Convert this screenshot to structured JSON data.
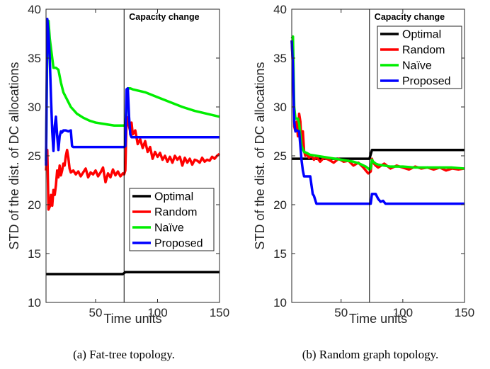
{
  "chart_data": [
    {
      "type": "line",
      "caption": "(a) Fat-tree topology.",
      "xlabel": "Time units",
      "ylabel": "STD of the dist. of DC allocations",
      "xlim": [
        10,
        150
      ],
      "ylim": [
        10,
        40
      ],
      "xticks": [
        50,
        100,
        150
      ],
      "yticks": [
        10,
        15,
        20,
        25,
        30,
        35,
        40
      ],
      "grid": false,
      "annotation": "Capacity change",
      "vline_x": 73,
      "legend_position": "bottom-right",
      "series": [
        {
          "name": "Optimal",
          "color": "#000000",
          "x": [
            10,
            72,
            74,
            150
          ],
          "y": [
            12.9,
            12.9,
            13.1,
            13.1
          ]
        },
        {
          "name": "Random",
          "color": "#ff0000",
          "x": [
            10,
            11,
            12,
            13,
            14,
            15,
            16,
            17,
            18,
            19,
            20,
            21,
            22,
            23,
            24,
            25,
            26,
            27,
            28,
            29,
            30,
            32,
            34,
            36,
            38,
            40,
            42,
            44,
            46,
            48,
            50,
            52,
            54,
            56,
            58,
            60,
            62,
            64,
            66,
            68,
            70,
            72,
            73,
            74,
            75,
            76,
            77,
            78,
            79,
            80,
            82,
            84,
            86,
            88,
            90,
            92,
            94,
            96,
            98,
            100,
            102,
            104,
            106,
            108,
            110,
            112,
            114,
            116,
            118,
            120,
            122,
            124,
            126,
            128,
            130,
            132,
            134,
            136,
            138,
            140,
            142,
            144,
            146,
            148,
            150
          ],
          "y": [
            23.5,
            25.6,
            19.5,
            19.8,
            21.0,
            19.9,
            21.5,
            21.0,
            22.0,
            23.5,
            22.8,
            24.0,
            23.0,
            23.5,
            24.2,
            24.0,
            25.0,
            25.6,
            24.8,
            23.7,
            23.3,
            23.5,
            23.1,
            23.4,
            22.9,
            23.3,
            23.7,
            22.8,
            23.3,
            23.1,
            23.5,
            22.9,
            23.3,
            23.8,
            22.3,
            23.2,
            22.8,
            23.6,
            23.0,
            23.4,
            22.9,
            23.2,
            23.1,
            23.5,
            29.0,
            28.5,
            28.0,
            27.5,
            28.4,
            27.2,
            27.6,
            26.2,
            26.7,
            25.8,
            26.5,
            25.4,
            25.9,
            24.7,
            25.4,
            24.9,
            25.3,
            24.6,
            25.0,
            24.4,
            24.9,
            24.3,
            25.0,
            24.6,
            24.9,
            24.0,
            24.8,
            24.3,
            24.7,
            24.1,
            24.6,
            24.5,
            24.3,
            24.8,
            24.4,
            24.6,
            24.5,
            24.9,
            24.7,
            25.0,
            25.2
          ]
        },
        {
          "name": "Naïve",
          "color": "#00ee00",
          "x": [
            10,
            11,
            12,
            13,
            14,
            16,
            18,
            20,
            22,
            24,
            26,
            28,
            30,
            35,
            40,
            45,
            50,
            55,
            60,
            65,
            70,
            73,
            74,
            75,
            76,
            78,
            80,
            90,
            100,
            110,
            120,
            130,
            140,
            150
          ],
          "y": [
            24.5,
            36.0,
            38.8,
            37.0,
            36.0,
            34.0,
            34.0,
            33.8,
            32.5,
            31.5,
            31.0,
            30.5,
            30.0,
            29.3,
            28.9,
            28.6,
            28.4,
            28.3,
            28.2,
            28.1,
            28.1,
            28.1,
            28.2,
            30.0,
            31.9,
            31.9,
            31.8,
            31.5,
            31.0,
            30.5,
            30.0,
            29.6,
            29.3,
            29.0
          ]
        },
        {
          "name": "Proposed",
          "color": "#0000ff",
          "x": [
            10,
            11,
            12,
            13,
            14,
            15,
            16,
            17,
            18,
            19,
            20,
            21,
            22,
            23,
            24,
            26,
            28,
            30,
            31,
            32,
            40,
            50,
            60,
            70,
            73,
            74,
            75,
            76,
            77,
            78,
            79,
            80,
            90,
            100,
            110,
            120,
            130,
            140,
            150
          ],
          "y": [
            24.0,
            39.0,
            37.5,
            35.0,
            31.0,
            27.5,
            25.5,
            28.0,
            29.0,
            27.0,
            25.6,
            27.0,
            27.5,
            27.4,
            27.6,
            27.6,
            27.5,
            27.6,
            26.0,
            25.9,
            25.9,
            25.9,
            25.9,
            25.9,
            25.9,
            26.0,
            31.8,
            31.9,
            29.0,
            27.2,
            26.9,
            26.9,
            26.9,
            26.9,
            26.9,
            26.9,
            26.9,
            26.9,
            26.9
          ]
        }
      ]
    },
    {
      "type": "line",
      "caption": "(b) Random graph topology.",
      "xlabel": "Time units",
      "ylabel": "STD of the dist. of DC allocations",
      "xlim": [
        10,
        150
      ],
      "ylim": [
        10,
        40
      ],
      "xticks": [
        50,
        100,
        150
      ],
      "yticks": [
        10,
        15,
        20,
        25,
        30,
        35,
        40
      ],
      "grid": false,
      "annotation": "Capacity change",
      "vline_x": 73,
      "legend_position": "top-right",
      "series": [
        {
          "name": "Optimal",
          "color": "#000000",
          "x": [
            10,
            73,
            75,
            150
          ],
          "y": [
            24.7,
            24.7,
            25.6,
            25.6
          ]
        },
        {
          "name": "Random",
          "color": "#ff0000",
          "x": [
            10,
            11,
            12,
            13,
            14,
            15,
            16,
            17,
            18,
            19,
            20,
            21,
            22,
            24,
            26,
            28,
            30,
            33,
            36,
            40,
            44,
            48,
            52,
            56,
            60,
            64,
            68,
            70,
            72,
            74,
            75,
            76,
            78,
            80,
            85,
            90,
            95,
            100,
            105,
            110,
            115,
            120,
            125,
            130,
            135,
            140,
            145,
            150
          ],
          "y": [
            36.8,
            34.0,
            28.0,
            27.5,
            28.5,
            27.0,
            29.3,
            28.5,
            26.0,
            27.5,
            25.5,
            25.0,
            25.2,
            24.8,
            25.0,
            24.6,
            24.9,
            24.4,
            24.8,
            24.6,
            24.3,
            24.7,
            24.4,
            24.5,
            24.0,
            24.3,
            23.8,
            23.5,
            23.2,
            23.4,
            24.7,
            24.3,
            24.0,
            23.8,
            24.2,
            23.7,
            24.0,
            23.8,
            23.6,
            23.9,
            23.7,
            23.8,
            23.6,
            23.8,
            23.5,
            23.7,
            23.6,
            23.7
          ]
        },
        {
          "name": "Naïve",
          "color": "#00ee00",
          "x": [
            10,
            11,
            12,
            13,
            14,
            15,
            16,
            18,
            20,
            22,
            25,
            30,
            35,
            40,
            45,
            50,
            55,
            60,
            65,
            70,
            73,
            74,
            75,
            76,
            78,
            80,
            85,
            90,
            100,
            110,
            120,
            130,
            140,
            150
          ],
          "y": [
            37.0,
            37.2,
            30.0,
            28.8,
            28.8,
            28.8,
            28.3,
            26.0,
            25.4,
            25.3,
            25.1,
            25.0,
            24.9,
            24.8,
            24.7,
            24.6,
            24.5,
            24.4,
            24.2,
            23.9,
            23.6,
            23.7,
            24.6,
            24.4,
            24.2,
            24.1,
            24.0,
            23.9,
            23.9,
            23.8,
            23.8,
            23.8,
            23.8,
            23.7
          ]
        },
        {
          "name": "Proposed",
          "color": "#0000ff",
          "x": [
            10,
            11,
            12,
            13,
            14,
            16,
            18,
            19,
            20,
            22,
            25,
            27,
            28,
            30,
            40,
            50,
            60,
            70,
            73,
            74,
            75,
            76,
            78,
            80,
            82,
            84,
            86,
            88,
            90,
            100,
            110,
            120,
            130,
            140,
            150
          ],
          "y": [
            36.8,
            34.0,
            28.5,
            27.5,
            27.6,
            27.5,
            24.5,
            23.5,
            22.9,
            22.9,
            22.9,
            21.1,
            20.9,
            20.1,
            20.1,
            20.1,
            20.1,
            20.1,
            20.1,
            20.1,
            21.1,
            21.1,
            21.1,
            20.6,
            20.3,
            20.4,
            20.1,
            20.1,
            20.1,
            20.1,
            20.1,
            20.1,
            20.1,
            20.1,
            20.1
          ]
        }
      ]
    }
  ]
}
